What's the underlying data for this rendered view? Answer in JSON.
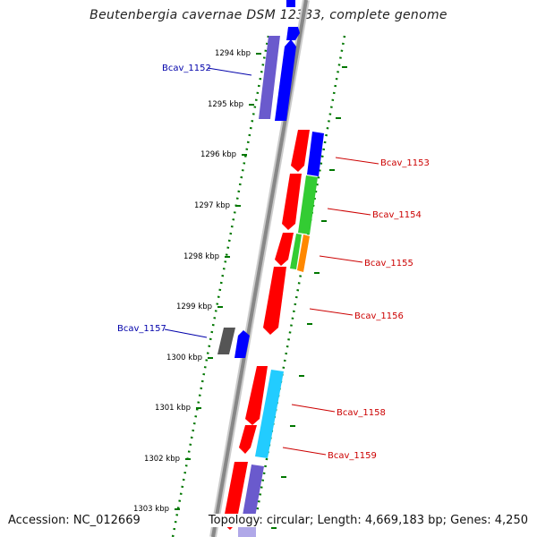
{
  "title": "Beutenbergia cavernae DSM 12333, complete genome",
  "footer": {
    "accession": "Accession: NC_012669",
    "summary": "Topology: circular; Length: 4,669,183 bp; Genes: 4,250"
  },
  "ruler": [
    {
      "label": "1294 kbp"
    },
    {
      "label": "1295 kbp"
    },
    {
      "label": "1296 kbp"
    },
    {
      "label": "1297 kbp"
    },
    {
      "label": "1298 kbp"
    },
    {
      "label": "1299 kbp"
    },
    {
      "label": "1300 kbp"
    },
    {
      "label": "1301 kbp"
    },
    {
      "label": "1302 kbp"
    },
    {
      "label": "1303 kbp"
    }
  ],
  "gene_labels": [
    {
      "text": "Bcav_1152",
      "color": "#0000aa"
    },
    {
      "text": "Bcav_1153",
      "color": "#cc0000"
    },
    {
      "text": "Bcav_1154",
      "color": "#cc0000"
    },
    {
      "text": "Bcav_1155",
      "color": "#cc0000"
    },
    {
      "text": "Bcav_1156",
      "color": "#cc0000"
    },
    {
      "text": "Bcav_1157",
      "color": "#0000aa"
    },
    {
      "text": "Bcav_1158",
      "color": "#cc0000"
    },
    {
      "text": "Bcav_1159",
      "color": "#cc0000"
    }
  ],
  "colors": {
    "backbone": "#888888",
    "tick_green": "#007700",
    "feature_red": "#ff0000",
    "feature_blue": "#0000ff",
    "feature_green": "#33cc33",
    "feature_orange": "#ff8800",
    "feature_cyan": "#22ccff",
    "feature_purple": "#6a5acd",
    "feature_gray": "#555555"
  }
}
